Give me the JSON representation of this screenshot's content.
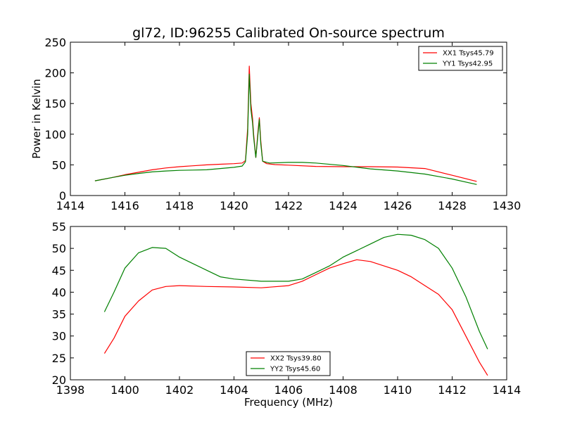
{
  "title": "gl72, ID:96255 Calibrated On-source spectrum",
  "chart_data": [
    {
      "type": "line",
      "ylabel": "Power in Kelvin",
      "xlim": [
        1414,
        1430
      ],
      "ylim": [
        0,
        250
      ],
      "xticks": [
        1414,
        1416,
        1418,
        1420,
        1422,
        1424,
        1426,
        1428,
        1430
      ],
      "yticks": [
        0,
        50,
        100,
        150,
        200,
        250
      ],
      "grid": false,
      "legend_position": "top-right",
      "series": [
        {
          "name": "XX1 Tsys45.79",
          "color": "#ff0000",
          "points": [
            [
              1414.9,
              24
            ],
            [
              1415.5,
              29
            ],
            [
              1416,
              34
            ],
            [
              1416.5,
              38
            ],
            [
              1417,
              42
            ],
            [
              1417.5,
              45
            ],
            [
              1418,
              47
            ],
            [
              1418.5,
              48.5
            ],
            [
              1419,
              50
            ],
            [
              1419.5,
              51
            ],
            [
              1420,
              52
            ],
            [
              1420.3,
              53
            ],
            [
              1420.42,
              57
            ],
            [
              1420.5,
              110
            ],
            [
              1420.56,
              211
            ],
            [
              1420.62,
              150
            ],
            [
              1420.68,
              125
            ],
            [
              1420.72,
              100
            ],
            [
              1420.8,
              62
            ],
            [
              1420.88,
              105
            ],
            [
              1420.93,
              127
            ],
            [
              1420.98,
              90
            ],
            [
              1421.05,
              56
            ],
            [
              1421.2,
              52
            ],
            [
              1421.5,
              50.5
            ],
            [
              1422,
              49.5
            ],
            [
              1423,
              47.5
            ],
            [
              1424,
              47
            ],
            [
              1425,
              47
            ],
            [
              1426,
              46.5
            ],
            [
              1427,
              44
            ],
            [
              1428,
              33
            ],
            [
              1428.9,
              23
            ]
          ]
        },
        {
          "name": "YY1 Tsys42.95",
          "color": "#008000",
          "points": [
            [
              1414.9,
              24
            ],
            [
              1415.5,
              29
            ],
            [
              1416,
              33
            ],
            [
              1416.5,
              36
            ],
            [
              1417,
              38.5
            ],
            [
              1417.5,
              40
            ],
            [
              1418,
              41
            ],
            [
              1418.5,
              41.5
            ],
            [
              1419,
              42
            ],
            [
              1419.5,
              44
            ],
            [
              1420,
              46
            ],
            [
              1420.3,
              48
            ],
            [
              1420.42,
              55
            ],
            [
              1420.5,
              100
            ],
            [
              1420.56,
              198
            ],
            [
              1420.62,
              140
            ],
            [
              1420.68,
              118
            ],
            [
              1420.72,
              95
            ],
            [
              1420.8,
              62
            ],
            [
              1420.88,
              100
            ],
            [
              1420.93,
              124
            ],
            [
              1420.98,
              85
            ],
            [
              1421.05,
              56
            ],
            [
              1421.3,
              53
            ],
            [
              1422,
              54
            ],
            [
              1422.5,
              54
            ],
            [
              1423,
              53
            ],
            [
              1424,
              49
            ],
            [
              1425,
              43.5
            ],
            [
              1426,
              40
            ],
            [
              1427,
              35
            ],
            [
              1428,
              27
            ],
            [
              1428.9,
              18
            ]
          ]
        }
      ]
    },
    {
      "type": "line",
      "xlabel": "Frequency (MHz)",
      "xlim": [
        1398,
        1414
      ],
      "ylim": [
        20,
        55
      ],
      "xticks": [
        1398,
        1400,
        1402,
        1404,
        1406,
        1408,
        1410,
        1412,
        1414
      ],
      "yticks": [
        20,
        25,
        30,
        35,
        40,
        45,
        50,
        55
      ],
      "grid": false,
      "legend_position": "bottom-center",
      "series": [
        {
          "name": "XX2 Tsys39.80",
          "color": "#ff0000",
          "points": [
            [
              1399.25,
              26
            ],
            [
              1399.6,
              29.5
            ],
            [
              1400,
              34.5
            ],
            [
              1400.5,
              38
            ],
            [
              1401,
              40.5
            ],
            [
              1401.5,
              41.3
            ],
            [
              1402,
              41.5
            ],
            [
              1403,
              41.3
            ],
            [
              1404,
              41.2
            ],
            [
              1405,
              41
            ],
            [
              1406,
              41.5
            ],
            [
              1406.5,
              42.5
            ],
            [
              1407,
              44
            ],
            [
              1407.5,
              45.5
            ],
            [
              1408,
              46.5
            ],
            [
              1408.5,
              47.4
            ],
            [
              1409,
              47
            ],
            [
              1409.5,
              46
            ],
            [
              1410,
              45
            ],
            [
              1410.5,
              43.5
            ],
            [
              1411,
              41.5
            ],
            [
              1411.5,
              39.5
            ],
            [
              1412,
              36
            ],
            [
              1412.5,
              30
            ],
            [
              1413,
              24
            ],
            [
              1413.3,
              21
            ]
          ]
        },
        {
          "name": "YY2 Tsys45.60",
          "color": "#008000",
          "points": [
            [
              1399.25,
              35.5
            ],
            [
              1399.6,
              40
            ],
            [
              1400,
              45.5
            ],
            [
              1400.5,
              49
            ],
            [
              1401,
              50.2
            ],
            [
              1401.5,
              50
            ],
            [
              1402,
              48
            ],
            [
              1402.5,
              46.5
            ],
            [
              1403,
              45
            ],
            [
              1403.5,
              43.5
            ],
            [
              1404,
              43
            ],
            [
              1405,
              42.5
            ],
            [
              1406,
              42.5
            ],
            [
              1406.5,
              43
            ],
            [
              1407,
              44.5
            ],
            [
              1407.5,
              46
            ],
            [
              1408,
              48
            ],
            [
              1408.5,
              49.5
            ],
            [
              1409,
              51
            ],
            [
              1409.5,
              52.5
            ],
            [
              1410,
              53.2
            ],
            [
              1410.5,
              53
            ],
            [
              1411,
              52
            ],
            [
              1411.5,
              50
            ],
            [
              1412,
              45.5
            ],
            [
              1412.5,
              39
            ],
            [
              1413,
              31
            ],
            [
              1413.3,
              27
            ]
          ]
        }
      ]
    }
  ]
}
